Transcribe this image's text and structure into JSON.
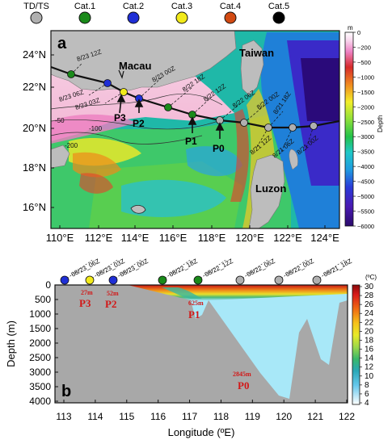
{
  "legend": {
    "categories": [
      {
        "label": "TD/TS",
        "color": "#b0b0b0"
      },
      {
        "label": "Cat.1",
        "color": "#1a8a1a"
      },
      {
        "label": "Cat.2",
        "color": "#1f2fd6"
      },
      {
        "label": "Cat.3",
        "color": "#f2ea1a"
      },
      {
        "label": "Cat.4",
        "color": "#d24a12"
      },
      {
        "label": "Cat.5",
        "color": "#000000"
      }
    ]
  },
  "panel_a": {
    "letter": "a",
    "lat_ticks": [
      "24°N",
      "22°N",
      "20°N",
      "18°N",
      "16°N"
    ],
    "lon_ticks": [
      "110°E",
      "112°E",
      "114°E",
      "116°E",
      "118°E",
      "120°E",
      "122°E",
      "124°E"
    ],
    "places": {
      "macau": "Macau",
      "taiwan": "Taiwan",
      "luzon": "Luzon"
    },
    "times": [
      "8/23 12Z",
      "8/23 06Z",
      "8/23 03Z",
      "8/23 00Z",
      "8/22 18Z",
      "8/22 12Z",
      "8/22 06Z",
      "8/22 00Z",
      "8/21 18Z",
      "8/21 12Z",
      "8/21 06Z",
      "8/21 00Z"
    ],
    "points": [
      "P3",
      "P2",
      "P1",
      "P0"
    ],
    "contours": [
      "-50",
      "-100",
      "-200"
    ],
    "colorbar": {
      "unit": "m",
      "title": "Depth",
      "ticks": [
        "0",
        "−200",
        "−500",
        "−1000",
        "−1500",
        "−2000",
        "−2500",
        "−3000",
        "−3500",
        "−4000",
        "−4500",
        "−5000",
        "−5500",
        "−6000"
      ]
    }
  },
  "panel_b": {
    "letter": "b",
    "xlabel": "Longitude (ºE)",
    "ylabel": "Depth (m)",
    "x_ticks": [
      "113",
      "114",
      "115",
      "116",
      "117",
      "118",
      "119",
      "120",
      "121",
      "122"
    ],
    "y_ticks": [
      "0",
      "500",
      "1000",
      "1500",
      "2000",
      "2500",
      "3000",
      "3500",
      "4000"
    ],
    "times": [
      "08/23_06Z",
      "08/23_03Z",
      "08/23_00Z",
      "08/22_18Z",
      "08/22_12Z",
      "08/22_06Z",
      "08/22_00Z",
      "08/21_18Z"
    ],
    "depth_notes": [
      {
        "depth": "27m",
        "point": "P3"
      },
      {
        "depth": "52m",
        "point": "P2"
      },
      {
        "depth": "625m",
        "point": "P1"
      },
      {
        "depth": "2845m",
        "point": "P0"
      }
    ],
    "colorbar": {
      "unit": "(ºC)",
      "ticks": [
        "30",
        "28",
        "26",
        "24",
        "22",
        "20",
        "18",
        "16",
        "14",
        "12",
        "10",
        "8",
        "6",
        "4"
      ]
    }
  }
}
